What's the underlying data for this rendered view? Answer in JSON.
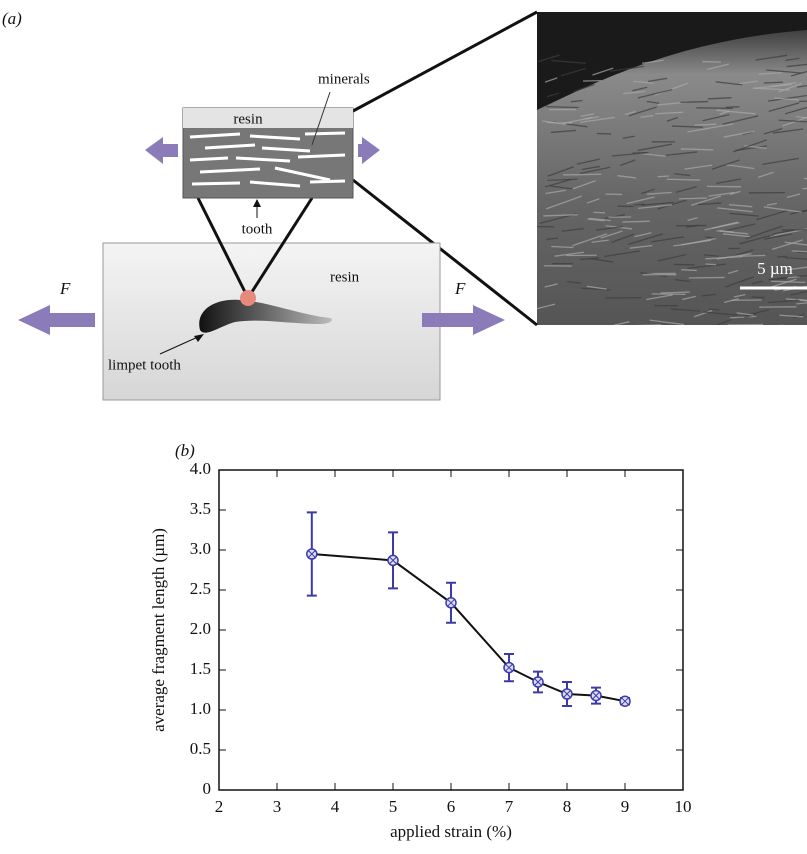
{
  "diagram": {
    "panel_label": "(a)",
    "inset": {
      "resin": "resin",
      "minerals": "minerals",
      "tooth": "tooth"
    },
    "specimen": {
      "resin": "resin",
      "tooth": "limpet tooth",
      "force_left": "F",
      "force_right": "F"
    },
    "micrograph": {
      "scale_bar": "5 µm"
    }
  },
  "chart_data": {
    "type": "line",
    "panel_label": "(b)",
    "x_label": "applied strain (%)",
    "y_label": "average fragment length (µm)",
    "xlim": [
      2,
      10
    ],
    "xticks": [
      2,
      3,
      4,
      5,
      6,
      7,
      8,
      9,
      10
    ],
    "ylim": [
      0,
      4
    ],
    "yticks": [
      0,
      0.5,
      {
        "value": 1,
        "label": "1.0"
      },
      1.5,
      {
        "value": 2,
        "label": "2.0"
      },
      2.5,
      {
        "value": 3,
        "label": "3.0"
      },
      3.5,
      {
        "value": 4,
        "label": "4.0"
      }
    ],
    "x": [
      3.6,
      5,
      6,
      7,
      7.5,
      8,
      8.5,
      9
    ],
    "series": [
      {
        "color": "#3b3ba8",
        "line_color": "#111111",
        "values": [
          2.95,
          2.87,
          2.34,
          1.53,
          1.35,
          1.2,
          1.18,
          1.11
        ],
        "errors": [
          0.52,
          0.35,
          0.25,
          0.17,
          0.13,
          0.15,
          0.1,
          0.04
        ]
      }
    ]
  }
}
